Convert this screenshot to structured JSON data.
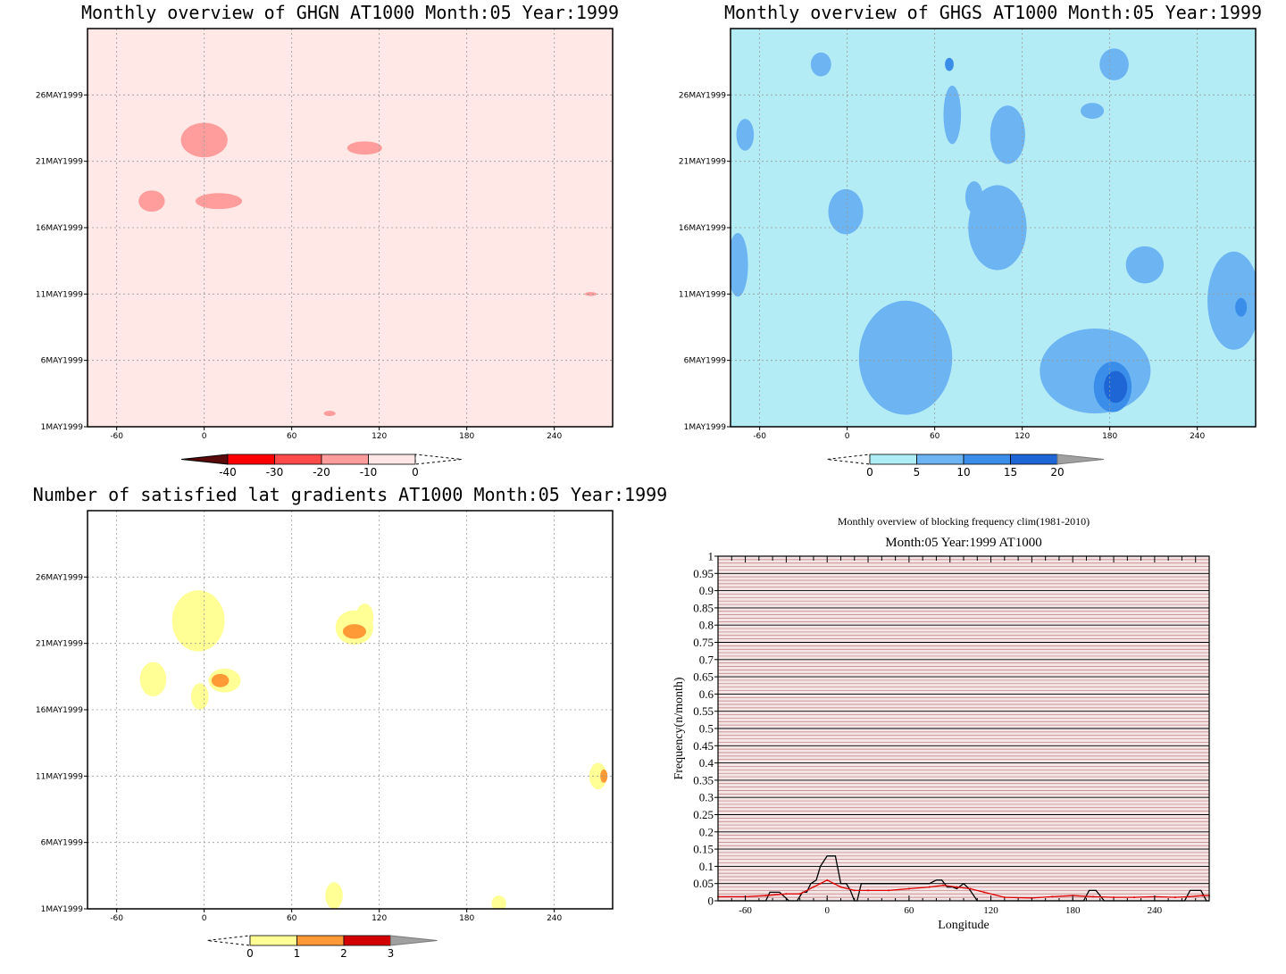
{
  "chart_data": [
    {
      "type": "heatmap",
      "title": "Monthly overview of GHGN AT1000 Month:05 Year:1999",
      "x_ticks": [
        "-60",
        "0",
        "60",
        "120",
        "180",
        "240"
      ],
      "x_tick_values": [
        -60,
        0,
        60,
        120,
        180,
        240
      ],
      "xlim": [
        -80,
        280
      ],
      "y_ticks": [
        "1MAY1999",
        "6MAY1999",
        "11MAY1999",
        "16MAY1999",
        "21MAY1999",
        "26MAY1999"
      ],
      "y_tick_values": [
        1,
        6,
        11,
        16,
        21,
        26
      ],
      "ylim": [
        1,
        31
      ],
      "colorbar": {
        "labels": [
          "-40",
          "-30",
          "-20",
          "-10",
          "0"
        ],
        "colors": [
          "#5a0a0a",
          "#ff0000",
          "#ff4a4a",
          "#ff9c9c",
          "#ffe6e6"
        ]
      },
      "background_color": "#ffe8e6",
      "patches": [
        {
          "x": 0,
          "y": 22.6,
          "rx": 16,
          "ry": 1.3,
          "level": "-20"
        },
        {
          "x": 110,
          "y": 22.0,
          "rx": 12,
          "ry": 0.5,
          "level": "-20"
        },
        {
          "x": 10,
          "y": 18.0,
          "rx": 16,
          "ry": 0.6,
          "level": "-20"
        },
        {
          "x": -36,
          "y": 18.0,
          "rx": 9,
          "ry": 0.8,
          "level": "-20"
        },
        {
          "x": 265,
          "y": 11.0,
          "rx": 4,
          "ry": 0.15,
          "level": "-20"
        },
        {
          "x": 86,
          "y": 2.0,
          "rx": 4,
          "ry": 0.2,
          "level": "-20"
        }
      ]
    },
    {
      "type": "heatmap",
      "title": "Monthly overview of GHGS AT1000 Month:05 Year:1999",
      "x_ticks": [
        "-60",
        "0",
        "60",
        "120",
        "180",
        "240"
      ],
      "x_tick_values": [
        -60,
        0,
        60,
        120,
        180,
        240
      ],
      "xlim": [
        -80,
        280
      ],
      "y_ticks": [
        "1MAY1999",
        "6MAY1999",
        "11MAY1999",
        "16MAY1999",
        "21MAY1999",
        "26MAY1999"
      ],
      "y_tick_values": [
        1,
        6,
        11,
        16,
        21,
        26
      ],
      "ylim": [
        1,
        31
      ],
      "colorbar": {
        "labels": [
          "0",
          "5",
          "10",
          "15",
          "20"
        ],
        "colors": [
          "#aeecf6",
          "#6cb4f2",
          "#3a8eea",
          "#1e66d6"
        ]
      },
      "background_color": "#b4ecf6",
      "patches": [
        {
          "x": 72,
          "y": 24.5,
          "rx": 6,
          "ry": 2.2,
          "level": "5"
        },
        {
          "x": 110,
          "y": 23.0,
          "rx": 12,
          "ry": 2.2,
          "level": "5"
        },
        {
          "x": 168,
          "y": 24.8,
          "rx": 8,
          "ry": 0.6,
          "level": "5"
        },
        {
          "x": 183,
          "y": 28.3,
          "rx": 10,
          "ry": 1.2,
          "level": "5"
        },
        {
          "x": -18,
          "y": 28.3,
          "rx": 7,
          "ry": 0.9,
          "level": "5"
        },
        {
          "x": -70,
          "y": 23.0,
          "rx": 6,
          "ry": 1.2,
          "level": "5"
        },
        {
          "x": -1,
          "y": 17.2,
          "rx": 12,
          "ry": 1.7,
          "level": "5"
        },
        {
          "x": 103,
          "y": 16.0,
          "rx": 20,
          "ry": 3.2,
          "level": "5"
        },
        {
          "x": 87,
          "y": 18.3,
          "rx": 6,
          "ry": 1.2,
          "level": "5"
        },
        {
          "x": 204,
          "y": 13.2,
          "rx": 13,
          "ry": 1.4,
          "level": "5"
        },
        {
          "x": -75,
          "y": 13.2,
          "rx": 7,
          "ry": 2.4,
          "level": "5"
        },
        {
          "x": 265,
          "y": 10.5,
          "rx": 18,
          "ry": 3.7,
          "level": "5"
        },
        {
          "x": 40,
          "y": 6.2,
          "rx": 32,
          "ry": 4.3,
          "level": "5"
        },
        {
          "x": 170,
          "y": 5.2,
          "rx": 38,
          "ry": 3.2,
          "level": "5"
        },
        {
          "x": 182,
          "y": 4.0,
          "rx": 13,
          "ry": 1.9,
          "level": "10"
        },
        {
          "x": 184,
          "y": 4.0,
          "rx": 8,
          "ry": 1.2,
          "level": "15"
        },
        {
          "x": 270,
          "y": 10.0,
          "rx": 4,
          "ry": 0.7,
          "level": "10"
        },
        {
          "x": 70,
          "y": 28.3,
          "rx": 3,
          "ry": 0.5,
          "level": "10"
        }
      ]
    },
    {
      "type": "heatmap",
      "title": "Number of satisfied lat gradients AT1000 Month:05 Year:1999",
      "x_ticks": [
        "-60",
        "0",
        "60",
        "120",
        "180",
        "240"
      ],
      "x_tick_values": [
        -60,
        0,
        60,
        120,
        180,
        240
      ],
      "xlim": [
        -80,
        280
      ],
      "y_ticks": [
        "1MAY1999",
        "6MAY1999",
        "11MAY1999",
        "16MAY1999",
        "21MAY1999",
        "26MAY1999"
      ],
      "y_tick_values": [
        1,
        6,
        11,
        16,
        21,
        26
      ],
      "ylim": [
        1,
        31
      ],
      "colorbar": {
        "labels": [
          "0",
          "1",
          "2",
          "3"
        ],
        "colors": [
          "#ffff96",
          "#ff9a36",
          "#d40000"
        ]
      },
      "background_color": "#ffffff",
      "patches": [
        {
          "x": -4,
          "y": 22.7,
          "rx": 18,
          "ry": 2.3,
          "level": "1"
        },
        {
          "x": -35,
          "y": 18.3,
          "rx": 9,
          "ry": 1.3,
          "level": "1"
        },
        {
          "x": 14,
          "y": 18.2,
          "rx": 11,
          "ry": 0.9,
          "level": "1"
        },
        {
          "x": -3,
          "y": 17.0,
          "rx": 6,
          "ry": 1.0,
          "level": "1"
        },
        {
          "x": 103,
          "y": 22.2,
          "rx": 13,
          "ry": 1.3,
          "level": "1"
        },
        {
          "x": 110,
          "y": 23.0,
          "rx": 6,
          "ry": 1.0,
          "level": "1"
        },
        {
          "x": 270,
          "y": 11.0,
          "rx": 6,
          "ry": 1.0,
          "level": "1"
        },
        {
          "x": 89,
          "y": 2.0,
          "rx": 6,
          "ry": 1.0,
          "level": "1"
        },
        {
          "x": 202,
          "y": 1.4,
          "rx": 5,
          "ry": 0.6,
          "level": "1"
        },
        {
          "x": 103,
          "y": 21.9,
          "rx": 8,
          "ry": 0.55,
          "level": "2"
        },
        {
          "x": 11,
          "y": 18.2,
          "rx": 6,
          "ry": 0.5,
          "level": "2"
        },
        {
          "x": 274,
          "y": 11.0,
          "rx": 2.5,
          "ry": 0.5,
          "level": "2"
        }
      ]
    },
    {
      "type": "line",
      "title": "Monthly overview of blocking frequency clim(1981-2010)",
      "subtitle": "Month:05 Year:1999  AT1000",
      "xlabel": "Longitude",
      "ylabel": "Frequency(n/month)",
      "xlim": [
        -80,
        280
      ],
      "ylim": [
        0,
        1
      ],
      "x_ticks": [
        "-60",
        "0",
        "60",
        "120",
        "180",
        "240"
      ],
      "x_tick_values": [
        -60,
        0,
        60,
        120,
        180,
        240
      ],
      "y_ticks": [
        "0",
        "0.05",
        "0.1",
        "0.15",
        "0.2",
        "0.25",
        "0.3",
        "0.35",
        "0.4",
        "0.45",
        "0.5",
        "0.55",
        "0.6",
        "0.65",
        "0.7",
        "0.75",
        "0.8",
        "0.85",
        "0.9",
        "0.95",
        "1"
      ],
      "series": [
        {
          "color": "#000000",
          "x": [
            -80,
            -45,
            -42,
            -35,
            -28,
            -22,
            -18,
            -15,
            -12,
            -8,
            -5,
            0,
            3,
            6,
            10,
            14,
            17,
            20,
            22,
            25,
            50,
            62,
            75,
            80,
            84,
            88,
            92,
            95,
            100,
            104,
            110,
            115,
            180,
            188,
            192,
            197,
            203,
            205,
            240,
            247,
            252,
            255,
            258,
            262,
            266,
            270,
            274,
            278,
            280
          ],
          "values": [
            0.0,
            0.0,
            0.025,
            0.025,
            0.0,
            0.0,
            0.025,
            0.025,
            0.05,
            0.06,
            0.1,
            0.13,
            0.13,
            0.13,
            0.05,
            0.05,
            0.03,
            0.0,
            0.0,
            0.05,
            0.05,
            0.05,
            0.05,
            0.06,
            0.06,
            0.04,
            0.04,
            0.035,
            0.05,
            0.035,
            0.0,
            0.0,
            0.0,
            0.0,
            0.03,
            0.03,
            0.0,
            0.0,
            0.0,
            0.0,
            0.0,
            0.0,
            0.0,
            0.0,
            0.03,
            0.03,
            0.03,
            0.0,
            0.0
          ]
        },
        {
          "color": "#e00000",
          "x": [
            -80,
            -60,
            -45,
            -30,
            -20,
            -10,
            -5,
            0,
            5,
            10,
            20,
            30,
            45,
            60,
            75,
            85,
            95,
            105,
            115,
            130,
            150,
            165,
            180,
            195,
            210,
            225,
            240,
            255,
            265,
            275,
            280
          ],
          "values": [
            0.012,
            0.012,
            0.015,
            0.02,
            0.02,
            0.04,
            0.05,
            0.06,
            0.05,
            0.04,
            0.03,
            0.03,
            0.03,
            0.035,
            0.04,
            0.045,
            0.04,
            0.035,
            0.025,
            0.01,
            0.008,
            0.012,
            0.015,
            0.012,
            0.01,
            0.01,
            0.012,
            0.01,
            0.012,
            0.015,
            0.015
          ]
        }
      ]
    }
  ]
}
